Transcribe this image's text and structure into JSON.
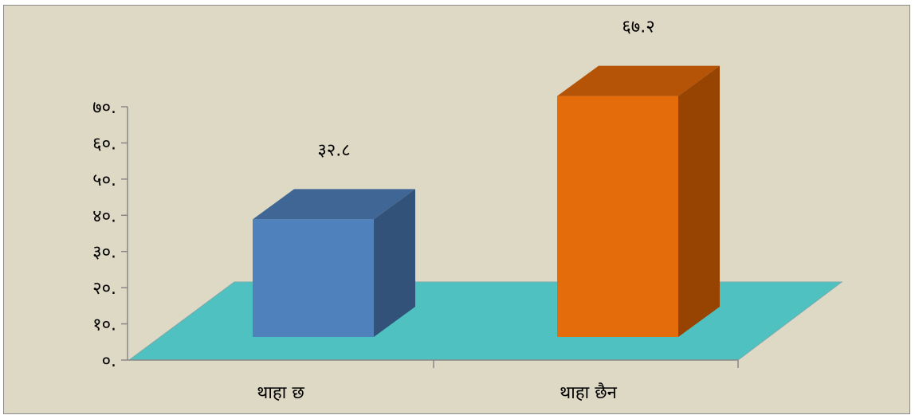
{
  "chart_data": {
    "type": "bar",
    "categories": [
      "थाहा छ",
      "थाहा छैन"
    ],
    "values": [
      32.8,
      67.2
    ],
    "value_labels": [
      "३२.८",
      "६७.२"
    ],
    "y_ticks": [
      0,
      10,
      20,
      30,
      40,
      50,
      60,
      70
    ],
    "y_tick_labels": [
      "०.",
      "१०.",
      "२०.",
      "३०.",
      "४०.",
      "५०.",
      "६०.",
      "७०."
    ],
    "ylim": [
      0,
      70
    ],
    "grid": false,
    "style": "3d-column",
    "colors": {
      "background": "#ddd9c4",
      "floor": "#4fc1c1",
      "bar_fronts": [
        "#4f81bd",
        "#e46c0a"
      ],
      "bar_tops": [
        "#3f6694",
        "#b55407"
      ],
      "bar_sides": [
        "#32527a",
        "#974302"
      ]
    }
  }
}
